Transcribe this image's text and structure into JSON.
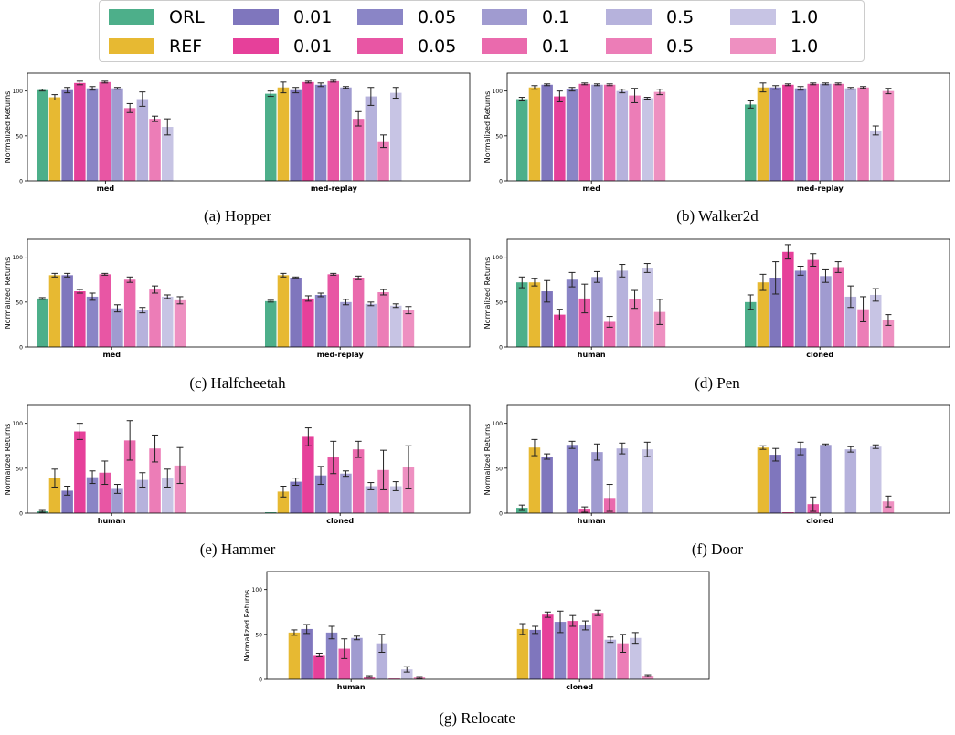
{
  "legend": [
    {
      "label": "ORL",
      "color": "#4daf8a"
    },
    {
      "label": "REF",
      "color": "#e7b932"
    },
    {
      "label": "0.01",
      "color": "#7f76bd"
    },
    {
      "label": "0.05",
      "color": "#8a85c6"
    },
    {
      "label": "0.1",
      "color": "#a09bd0"
    },
    {
      "label": "0.5",
      "color": "#b6b2dc"
    },
    {
      "label": "1.0",
      "color": "#c7c4e4"
    },
    {
      "label": "0.01",
      "color": "#e6409a"
    },
    {
      "label": "0.05",
      "color": "#e856a4"
    },
    {
      "label": "0.1",
      "color": "#ea6aad"
    },
    {
      "label": "0.5",
      "color": "#ec7db7"
    },
    {
      "label": "1.0",
      "color": "#ee90c1"
    }
  ],
  "chart_data": [
    {
      "type": "bar",
      "caption": "(a) Hopper",
      "ylabel": "Normalized Returns",
      "ylim": [
        0,
        120
      ],
      "yticks": [
        "0",
        "50",
        "100"
      ],
      "categories": [
        "med",
        "med-replay"
      ],
      "groups": [
        {
          "values": [
            101,
            93,
            101,
            109,
            103,
            110,
            103,
            81,
            91,
            69,
            60
          ],
          "errors": [
            1,
            3,
            3,
            2,
            2,
            1,
            1,
            5,
            8,
            3,
            9
          ]
        },
        {
          "values": [
            97,
            104,
            101,
            110,
            107,
            111,
            104,
            69,
            94,
            44,
            98
          ],
          "errors": [
            3,
            6,
            3,
            1,
            2,
            1,
            1,
            8,
            10,
            7,
            6
          ]
        }
      ]
    },
    {
      "type": "bar",
      "caption": "(b) Walker2d",
      "ylabel": "Normalized Returns",
      "ylim": [
        0,
        120
      ],
      "yticks": [
        "0",
        "50",
        "100"
      ],
      "categories": [
        "med",
        "med-replay"
      ],
      "groups": [
        {
          "values": [
            91,
            104,
            107,
            94,
            102,
            108,
            107,
            107,
            100,
            95,
            92,
            99
          ],
          "errors": [
            2,
            2,
            1,
            6,
            2,
            1,
            1,
            1,
            2,
            8,
            1,
            3
          ]
        },
        {
          "values": [
            85,
            104,
            104,
            107,
            103,
            108,
            108,
            108,
            103,
            104,
            56,
            100
          ],
          "errors": [
            4,
            5,
            2,
            1,
            2,
            1,
            1,
            1,
            1,
            1,
            5,
            3
          ]
        }
      ]
    },
    {
      "type": "bar",
      "caption": "(c) Halfcheetah",
      "ylabel": "Normalized Returns",
      "ylim": [
        0,
        120
      ],
      "yticks": [
        "0",
        "50",
        "100"
      ],
      "categories": [
        "med",
        "med-replay"
      ],
      "groups": [
        {
          "values": [
            54,
            80,
            80,
            62,
            56,
            81,
            43,
            75,
            41,
            64,
            56,
            52
          ],
          "errors": [
            1,
            2,
            2,
            2,
            4,
            1,
            4,
            3,
            3,
            4,
            2,
            4
          ]
        },
        {
          "values": [
            51,
            80,
            77,
            54,
            58,
            81,
            50,
            77,
            48,
            61,
            46,
            41
          ],
          "errors": [
            1,
            2,
            1,
            3,
            2,
            1,
            3,
            2,
            2,
            3,
            2,
            4
          ]
        }
      ]
    },
    {
      "type": "bar",
      "caption": "(d) Pen",
      "ylabel": "Normalized Returns",
      "ylim": [
        0,
        120
      ],
      "yticks": [
        "0",
        "50",
        "100"
      ],
      "categories": [
        "human",
        "cloned"
      ],
      "groups": [
        {
          "values": [
            72,
            72,
            62,
            36,
            75,
            54,
            78,
            28,
            85,
            53,
            88,
            39
          ],
          "errors": [
            6,
            4,
            12,
            6,
            8,
            16,
            6,
            6,
            7,
            10,
            5,
            14
          ]
        },
        {
          "values": [
            50,
            72,
            77,
            106,
            85,
            97,
            79,
            89,
            56,
            42,
            58,
            30
          ],
          "errors": [
            8,
            9,
            18,
            8,
            5,
            7,
            7,
            6,
            12,
            14,
            7,
            6
          ]
        }
      ]
    },
    {
      "type": "bar",
      "caption": "(e) Hammer",
      "ylabel": "Normalized Returns",
      "ylim": [
        0,
        120
      ],
      "yticks": [
        "0",
        "50",
        "100"
      ],
      "categories": [
        "human",
        "cloned"
      ],
      "groups": [
        {
          "values": [
            2,
            39,
            25,
            91,
            40,
            45,
            27,
            81,
            37,
            72,
            39,
            53
          ],
          "errors": [
            1,
            10,
            5,
            9,
            7,
            13,
            5,
            22,
            8,
            15,
            10,
            20
          ]
        },
        {
          "values": [
            1,
            24,
            35,
            85,
            42,
            62,
            44,
            71,
            30,
            48,
            30,
            51
          ],
          "errors": [
            0,
            6,
            4,
            10,
            10,
            18,
            3,
            9,
            4,
            22,
            5,
            24
          ]
        }
      ]
    },
    {
      "type": "bar",
      "caption": "(f) Door",
      "ylabel": "Normalized Returns",
      "ylim": [
        0,
        120
      ],
      "yticks": [
        "0",
        "50",
        "100"
      ],
      "categories": [
        "human",
        "cloned"
      ],
      "groups": [
        {
          "values": [
            6,
            73,
            63,
            0,
            76,
            4,
            68,
            17,
            72,
            0,
            71,
            0
          ],
          "errors": [
            3,
            9,
            3,
            0,
            4,
            3,
            9,
            15,
            6,
            0,
            8,
            0
          ]
        },
        {
          "values": [
            0,
            73,
            65,
            1,
            72,
            10,
            76,
            0,
            71,
            0,
            74,
            13
          ],
          "errors": [
            0,
            2,
            7,
            0,
            7,
            8,
            1,
            0,
            3,
            0,
            2,
            6
          ]
        }
      ]
    },
    {
      "type": "bar",
      "caption": "(g) Relocate",
      "ylabel": "Normalized Returns",
      "ylim": [
        0,
        120
      ],
      "yticks": [
        "0",
        "50",
        "100"
      ],
      "categories": [
        "human",
        "cloned"
      ],
      "groups": [
        {
          "values": [
            0,
            52,
            56,
            27,
            52,
            34,
            46,
            3,
            40,
            1,
            11,
            2
          ],
          "errors": [
            0,
            3,
            5,
            2,
            7,
            11,
            2,
            1,
            10,
            0,
            3,
            1
          ]
        },
        {
          "values": [
            0,
            56,
            55,
            72,
            64,
            65,
            60,
            74,
            44,
            40,
            46,
            4
          ],
          "errors": [
            0,
            6,
            4,
            3,
            12,
            6,
            5,
            3,
            3,
            10,
            6,
            1
          ]
        }
      ]
    }
  ]
}
